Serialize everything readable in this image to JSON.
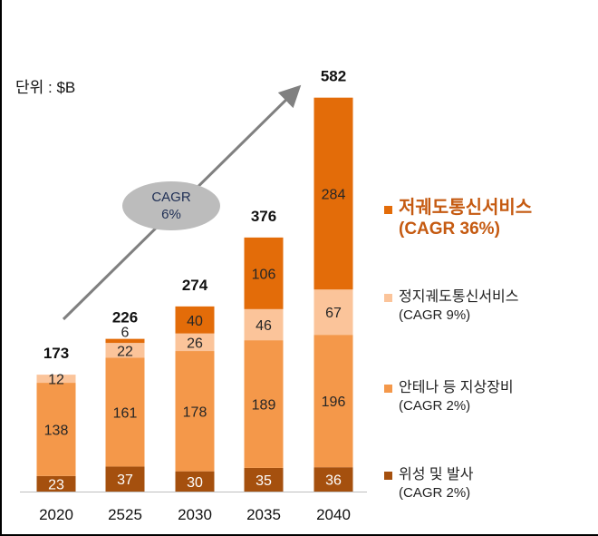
{
  "unit_label": "단위 : $B",
  "cagr_bubble": {
    "line1": "CAGR",
    "line2": "6%"
  },
  "colors": {
    "satellite": "#a5500e",
    "ground": "#f4984a",
    "gso": "#fbc49a",
    "ngso": "#e36c09",
    "legend_main_text": "#c55a11",
    "arrow": "#808080"
  },
  "chart_data": {
    "type": "bar",
    "stacked": true,
    "categories": [
      "2020",
      "2525",
      "2030",
      "2035",
      "2040"
    ],
    "totals": [
      173,
      226,
      274,
      376,
      582
    ],
    "ylim": [
      0,
      600
    ],
    "series": [
      {
        "key": "satellite",
        "name": "위성 및 발사",
        "cagr": "(CAGR 2%)",
        "values": [
          23,
          37,
          30,
          35,
          36
        ]
      },
      {
        "key": "ground",
        "name": "안테나 등 지상장비",
        "cagr": "(CAGR 2%)",
        "values": [
          138,
          161,
          178,
          189,
          196
        ]
      },
      {
        "key": "gso",
        "name": "정지궤도통신서비스",
        "cagr": "(CAGR 9%)",
        "values": [
          12,
          22,
          26,
          46,
          67
        ]
      },
      {
        "key": "ngso",
        "name": "저궤도통신서비스",
        "cagr": "(CAGR 36%)",
        "values": [
          0,
          6,
          40,
          106,
          284
        ]
      }
    ]
  }
}
